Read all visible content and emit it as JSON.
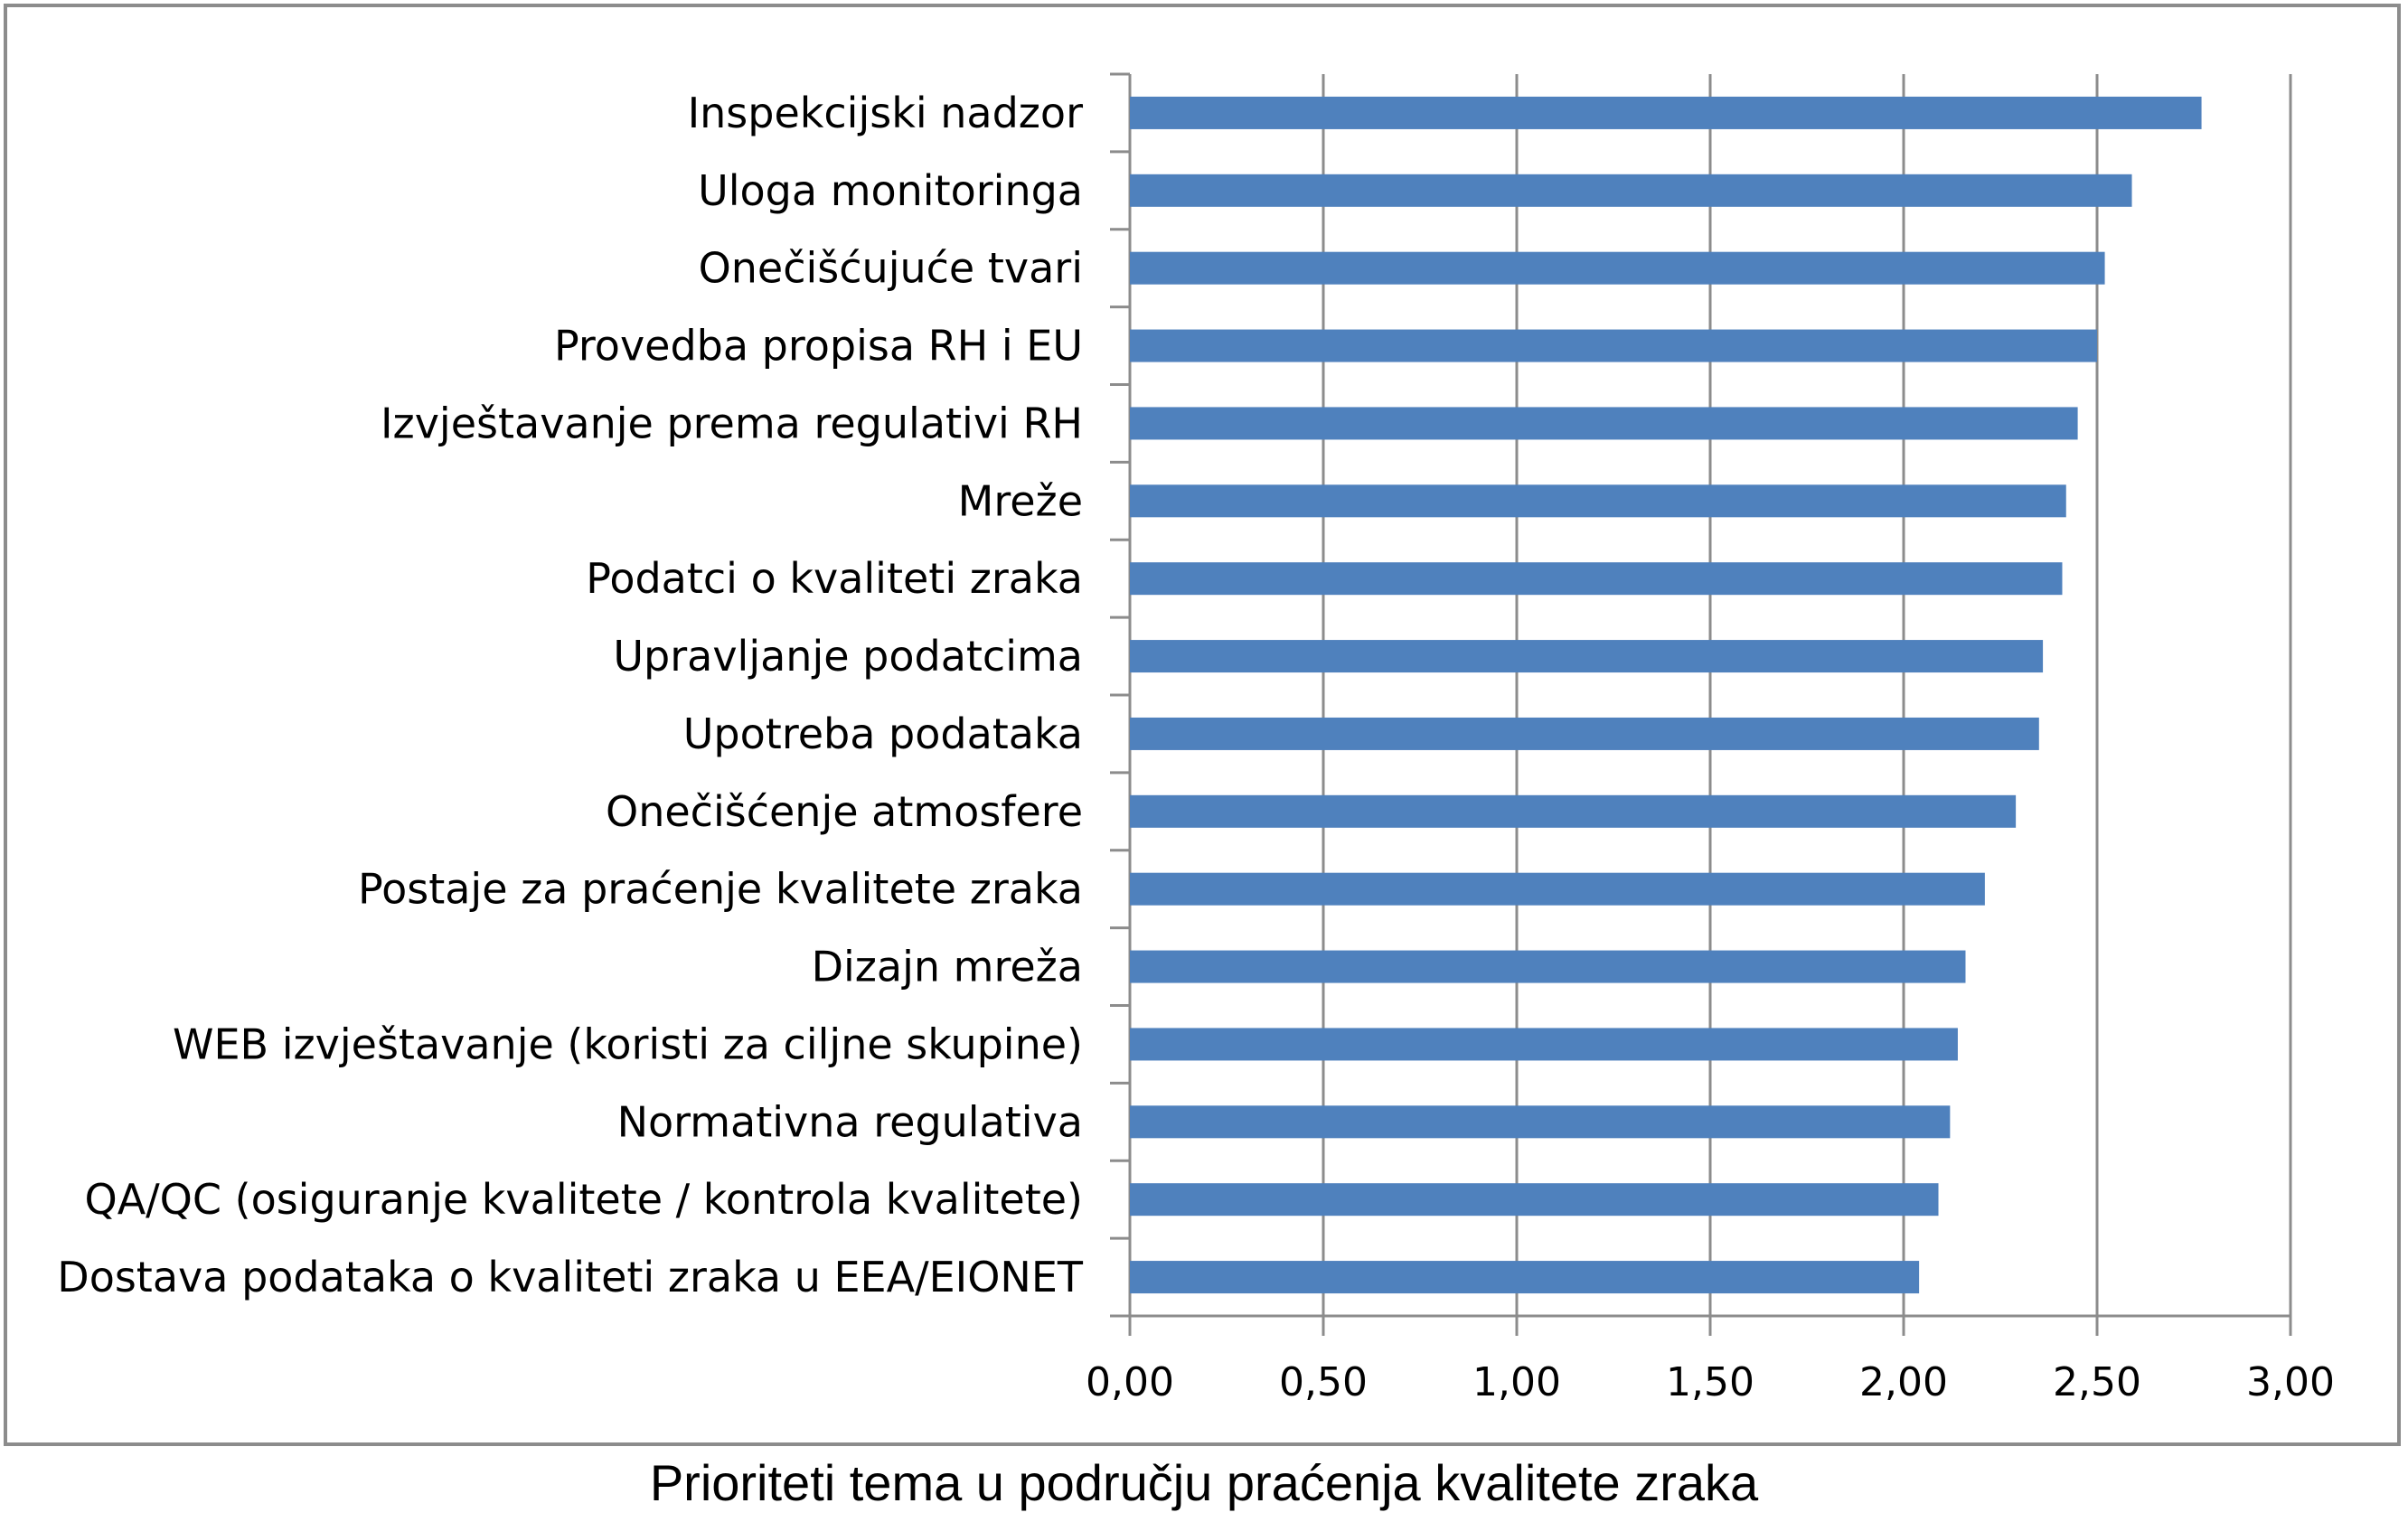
{
  "caption": "Prioriteti tema u području praćenja kvalitete zraka",
  "chart_data": {
    "type": "bar",
    "orientation": "horizontal",
    "categories": [
      "Inspekcijski nadzor",
      "Uloga monitoringa",
      "Onečišćujuće tvari",
      "Provedba propisa RH i EU",
      "Izvještavanje prema regulativi RH",
      "Mreže",
      "Podatci o kvaliteti zraka",
      "Upravljanje podatcima",
      "Upotreba podataka",
      "Onečišćenje atmosfere",
      "Postaje za praćenje kvalitete zraka",
      "Dizajn mreža",
      "WEB izvještavanje (koristi za ciljne skupine)",
      "Normativna regulativa",
      "QA/QC (osiguranje kvalitete / kontrola kvalitete)",
      "Dostava podataka o kvaliteti zraka u EEA/EIONET"
    ],
    "values": [
      2.77,
      2.59,
      2.52,
      2.5,
      2.45,
      2.42,
      2.41,
      2.36,
      2.35,
      2.29,
      2.21,
      2.16,
      2.14,
      2.12,
      2.09,
      2.04
    ],
    "xlim": [
      0,
      3
    ],
    "xticks": [
      0,
      0.5,
      1,
      1.5,
      2,
      2.5,
      3
    ],
    "xtick_labels": [
      "0,00",
      "0,50",
      "1,00",
      "1,50",
      "2,00",
      "2,50",
      "3,00"
    ],
    "grid": "vertical",
    "bar_color": "#4f81bd",
    "grid_color": "#8c8c8c"
  }
}
